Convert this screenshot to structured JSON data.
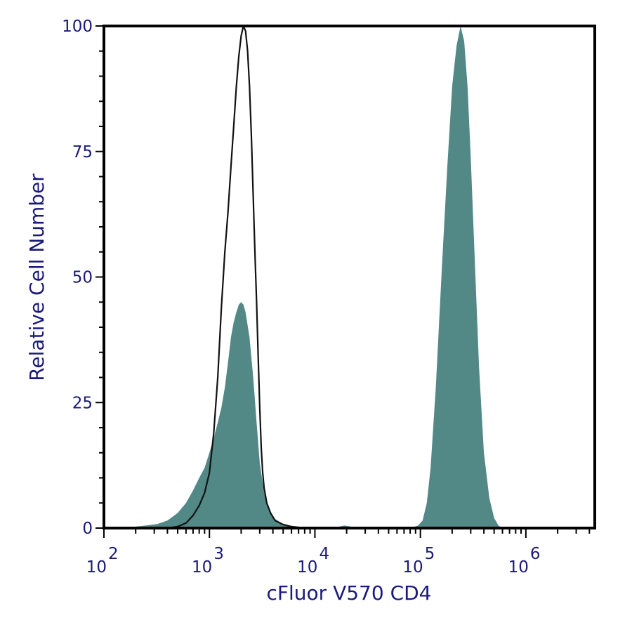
{
  "chart_data": {
    "type": "area",
    "xlabel": "cFluor V570 CD4",
    "ylabel": "Relative Cell Number",
    "x_scale": "log",
    "xlim": [
      100,
      4500000
    ],
    "ylim": [
      0,
      100
    ],
    "y_ticks": [
      {
        "value": 0,
        "label": "0"
      },
      {
        "value": 25,
        "label": "25"
      },
      {
        "value": 50,
        "label": "50"
      },
      {
        "value": 75,
        "label": "75"
      },
      {
        "value": 100,
        "label": "100"
      }
    ],
    "x_ticks": [
      {
        "value": 100,
        "base": "10",
        "exp": "2"
      },
      {
        "value": 1000,
        "base": "10",
        "exp": "3"
      },
      {
        "value": 10000,
        "base": "10",
        "exp": "4"
      },
      {
        "value": 100000,
        "base": "10",
        "exp": "5"
      },
      {
        "value": 1000000,
        "base": "10",
        "exp": "6"
      }
    ],
    "grid": false,
    "legend": "none",
    "series": [
      {
        "style": "filled",
        "color": "#528886",
        "points": [
          [
            170,
            0
          ],
          [
            200,
            0.3
          ],
          [
            250,
            0.5
          ],
          [
            320,
            0.8
          ],
          [
            400,
            1.5
          ],
          [
            500,
            3
          ],
          [
            600,
            5
          ],
          [
            700,
            7.5
          ],
          [
            800,
            10
          ],
          [
            900,
            12
          ],
          [
            1000,
            15
          ],
          [
            1100,
            18
          ],
          [
            1200,
            21
          ],
          [
            1300,
            24
          ],
          [
            1400,
            28
          ],
          [
            1500,
            33
          ],
          [
            1600,
            38
          ],
          [
            1700,
            41
          ],
          [
            1800,
            43
          ],
          [
            1900,
            44.5
          ],
          [
            2000,
            45
          ],
          [
            2100,
            44.5
          ],
          [
            2200,
            43
          ],
          [
            2400,
            38
          ],
          [
            2600,
            30
          ],
          [
            2800,
            21
          ],
          [
            3000,
            13
          ],
          [
            3300,
            7
          ],
          [
            3700,
            3.5
          ],
          [
            4200,
            1.8
          ],
          [
            5000,
            0.8
          ],
          [
            6000,
            0.4
          ],
          [
            7500,
            0.2
          ],
          [
            9000,
            0
          ],
          [
            15000,
            0
          ],
          [
            17000,
            0.3
          ],
          [
            19000,
            0.5
          ],
          [
            22000,
            0.3
          ],
          [
            26000,
            0
          ],
          [
            80000,
            0
          ],
          [
            95000,
            0.5
          ],
          [
            105000,
            1.5
          ],
          [
            115000,
            5
          ],
          [
            125000,
            12
          ],
          [
            140000,
            28
          ],
          [
            160000,
            52
          ],
          [
            180000,
            72
          ],
          [
            200000,
            88
          ],
          [
            220000,
            96
          ],
          [
            240000,
            100
          ],
          [
            260000,
            97
          ],
          [
            280000,
            88
          ],
          [
            300000,
            74
          ],
          [
            330000,
            52
          ],
          [
            360000,
            32
          ],
          [
            400000,
            15
          ],
          [
            450000,
            6
          ],
          [
            500000,
            2
          ],
          [
            550000,
            0.5
          ],
          [
            600000,
            0
          ]
        ]
      },
      {
        "style": "outline",
        "color": "#111111",
        "points": [
          [
            400,
            0
          ],
          [
            500,
            0.3
          ],
          [
            600,
            1
          ],
          [
            700,
            2.5
          ],
          [
            800,
            4.5
          ],
          [
            900,
            7
          ],
          [
            1000,
            11
          ],
          [
            1100,
            19
          ],
          [
            1200,
            30
          ],
          [
            1300,
            44
          ],
          [
            1400,
            55
          ],
          [
            1500,
            63
          ],
          [
            1600,
            72
          ],
          [
            1700,
            80
          ],
          [
            1800,
            88
          ],
          [
            1900,
            94
          ],
          [
            2000,
            98
          ],
          [
            2100,
            100
          ],
          [
            2200,
            99
          ],
          [
            2300,
            95
          ],
          [
            2400,
            88
          ],
          [
            2500,
            78
          ],
          [
            2600,
            66
          ],
          [
            2700,
            55
          ],
          [
            2800,
            45
          ],
          [
            2900,
            34
          ],
          [
            3000,
            24
          ],
          [
            3100,
            16
          ],
          [
            3200,
            11
          ],
          [
            3300,
            8
          ],
          [
            3500,
            5
          ],
          [
            3800,
            3
          ],
          [
            4200,
            1.5
          ],
          [
            5000,
            0.7
          ],
          [
            6000,
            0.3
          ],
          [
            8000,
            0
          ]
        ]
      }
    ]
  }
}
